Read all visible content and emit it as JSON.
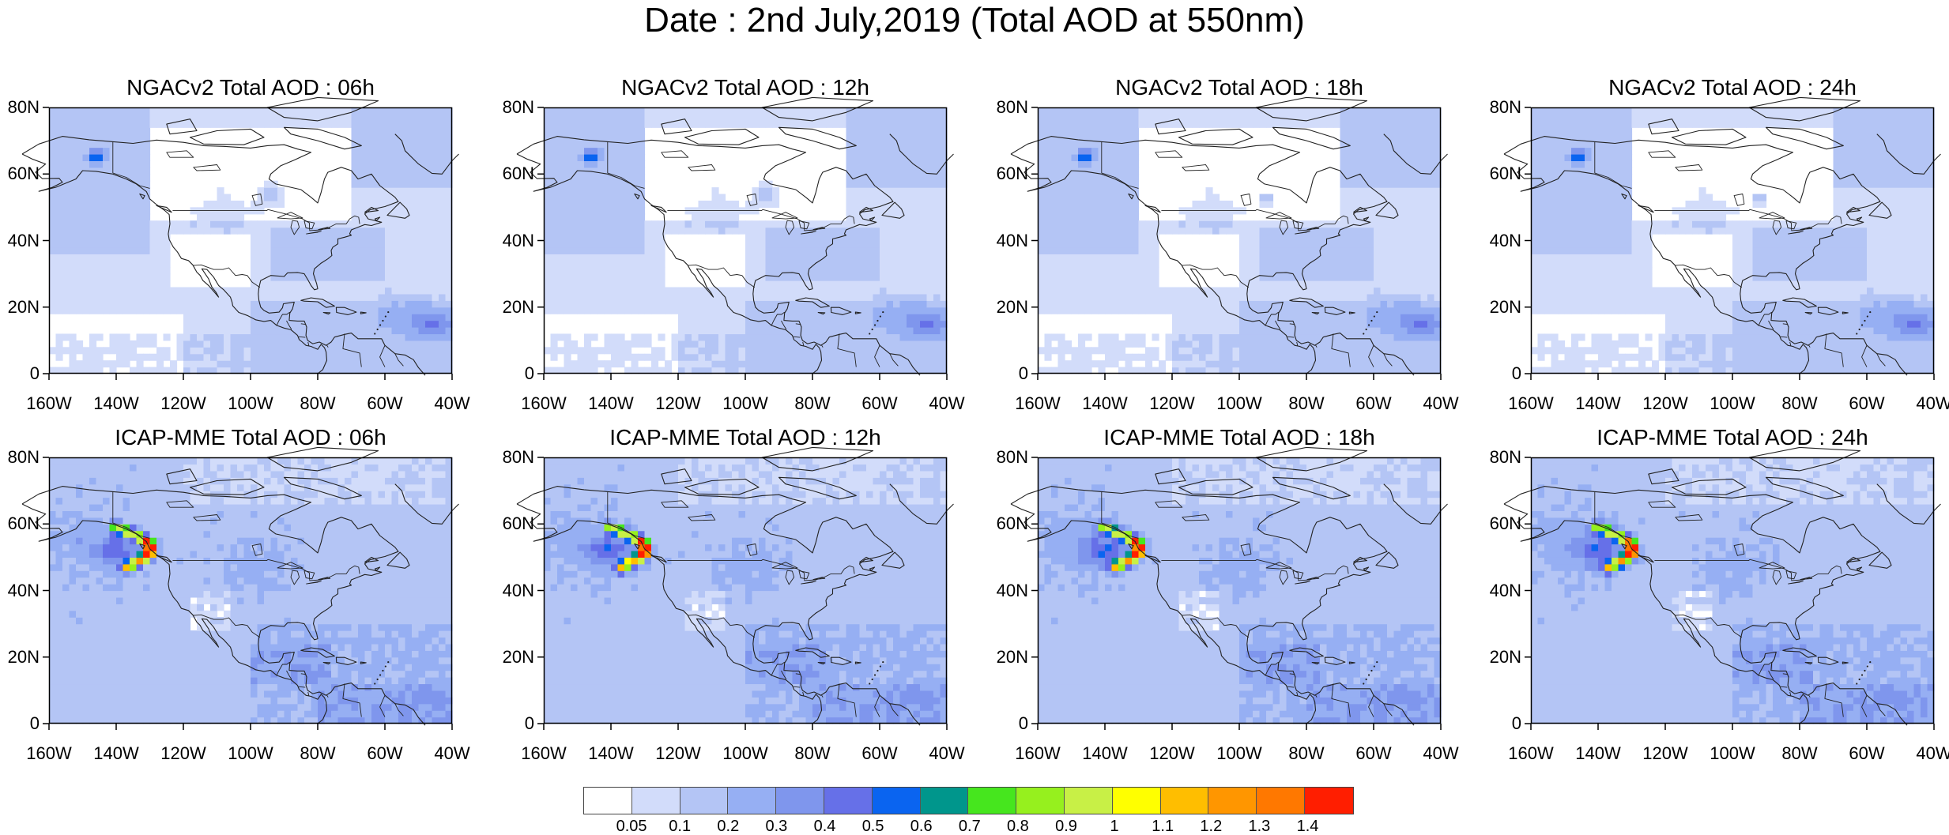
{
  "title": "Date : 2nd July,2019 (Total AOD at 550nm)",
  "panels": [
    {
      "title": "NGACv2 Total AOD : 06h",
      "model": "NGACv2",
      "hour": "06h"
    },
    {
      "title": "NGACv2 Total AOD : 12h",
      "model": "NGACv2",
      "hour": "12h"
    },
    {
      "title": "NGACv2 Total AOD : 18h",
      "model": "NGACv2",
      "hour": "18h"
    },
    {
      "title": "NGACv2 Total AOD : 24h",
      "model": "NGACv2",
      "hour": "24h"
    },
    {
      "title": "ICAP-MME Total AOD : 06h",
      "model": "ICAP-MME",
      "hour": "06h"
    },
    {
      "title": "ICAP-MME Total AOD : 12h",
      "model": "ICAP-MME",
      "hour": "12h"
    },
    {
      "title": "ICAP-MME Total AOD : 18h",
      "model": "ICAP-MME",
      "hour": "18h"
    },
    {
      "title": "ICAP-MME Total AOD : 24h",
      "model": "ICAP-MME",
      "hour": "24h"
    }
  ],
  "axes": {
    "lat_labels": [
      "80N",
      "60N",
      "40N",
      "20N",
      "0"
    ],
    "lat_values": [
      80,
      60,
      40,
      20,
      0
    ],
    "lon_labels": [
      "160W",
      "140W",
      "120W",
      "100W",
      "80W",
      "60W",
      "40W"
    ],
    "lon_values": [
      -160,
      -140,
      -120,
      -100,
      -80,
      -60,
      -40
    ]
  },
  "colorbar": {
    "labels": [
      "0.05",
      "0.1",
      "0.2",
      "0.3",
      "0.4",
      "0.5",
      "0.6",
      "0.7",
      "0.8",
      "0.9",
      "1",
      "1.1",
      "1.2",
      "1.3",
      "1.4"
    ],
    "colors": [
      "#ffffff",
      "#d2dcfa",
      "#b4c5f5",
      "#96aff3",
      "#7f96ed",
      "#6670e8",
      "#0a64f0",
      "#00968c",
      "#46e61e",
      "#96f01e",
      "#c8f046",
      "#ffff00",
      "#ffbe00",
      "#ff9600",
      "#ff7800",
      "#ff1e00"
    ]
  }
}
